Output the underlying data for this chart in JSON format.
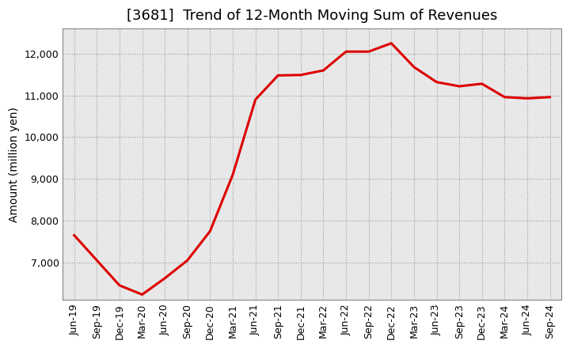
{
  "title": "[3681]  Trend of 12-Month Moving Sum of Revenues",
  "ylabel": "Amount (million yen)",
  "plot_bg_color": "#e8e8e8",
  "fig_bg_color": "#ffffff",
  "grid_color": "#999999",
  "line_color": "#dd0000",
  "x_labels": [
    "Jun-19",
    "Sep-19",
    "Dec-19",
    "Mar-20",
    "Jun-20",
    "Sep-20",
    "Dec-20",
    "Mar-21",
    "Jun-21",
    "Sep-21",
    "Dec-21",
    "Mar-22",
    "Jun-22",
    "Sep-22",
    "Dec-22",
    "Mar-23",
    "Jun-23",
    "Sep-23",
    "Dec-23",
    "Mar-24",
    "Jun-24",
    "Sep-24"
  ],
  "values": [
    7650,
    7050,
    6450,
    6230,
    6620,
    7050,
    7750,
    9100,
    10900,
    11480,
    11490,
    11600,
    12050,
    12050,
    12250,
    11680,
    11320,
    11220,
    11280,
    10960,
    10930,
    10960
  ],
  "ylim_min": 6100,
  "ylim_max": 12600,
  "yticks": [
    7000,
    8000,
    9000,
    10000,
    11000,
    12000
  ],
  "title_fontsize": 13,
  "axis_label_fontsize": 10,
  "tick_fontsize": 9,
  "line_width": 2.2
}
